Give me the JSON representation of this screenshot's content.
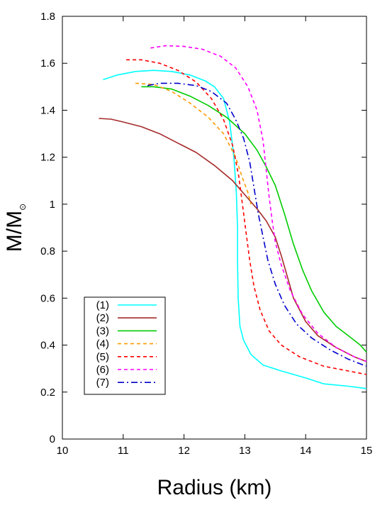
{
  "chart_data": {
    "type": "line",
    "title": "",
    "xlabel": "Radius (km)",
    "ylabel_main": "M/M",
    "ylabel_sub": "⊙",
    "xlim": [
      10,
      15
    ],
    "ylim": [
      0,
      1.8
    ],
    "xticks": [
      10,
      11,
      12,
      13,
      14,
      15
    ],
    "yticks": [
      0,
      0.2,
      0.4,
      0.6,
      0.8,
      1,
      1.2,
      1.4,
      1.6,
      1.8
    ],
    "xtick_labels": [
      "10",
      "11",
      "12",
      "13",
      "14",
      "15"
    ],
    "ytick_labels": [
      "0",
      "0.2",
      "0.4",
      "0.6",
      "0.8",
      "1",
      "1.2",
      "1.4",
      "1.6",
      "1.8"
    ],
    "grid": false,
    "legend_position": "bottom-left",
    "series": [
      {
        "name": "(1)",
        "color": "#00ffff",
        "dash": "solid",
        "points": [
          [
            10.67,
            1.53
          ],
          [
            10.9,
            1.55
          ],
          [
            11.2,
            1.565
          ],
          [
            11.5,
            1.57
          ],
          [
            11.8,
            1.565
          ],
          [
            12.1,
            1.55
          ],
          [
            12.35,
            1.525
          ],
          [
            12.5,
            1.5
          ],
          [
            12.65,
            1.45
          ],
          [
            12.75,
            1.35
          ],
          [
            12.82,
            1.2
          ],
          [
            12.86,
            1.05
          ],
          [
            12.88,
            0.9
          ],
          [
            12.88,
            0.75
          ],
          [
            12.89,
            0.6
          ],
          [
            12.92,
            0.48
          ],
          [
            12.98,
            0.42
          ],
          [
            13.1,
            0.36
          ],
          [
            13.3,
            0.315
          ],
          [
            13.6,
            0.29
          ],
          [
            14.0,
            0.26
          ],
          [
            14.3,
            0.235
          ],
          [
            14.7,
            0.225
          ],
          [
            15.0,
            0.215
          ]
        ]
      },
      {
        "name": "(2)",
        "color": "#a52a2a",
        "dash": "solid",
        "points": [
          [
            10.6,
            1.365
          ],
          [
            10.8,
            1.362
          ],
          [
            11.0,
            1.35
          ],
          [
            11.3,
            1.33
          ],
          [
            11.6,
            1.3
          ],
          [
            11.9,
            1.26
          ],
          [
            12.2,
            1.22
          ],
          [
            12.5,
            1.165
          ],
          [
            12.8,
            1.1
          ],
          [
            13.0,
            1.04
          ],
          [
            13.2,
            0.98
          ],
          [
            13.35,
            0.93
          ],
          [
            13.5,
            0.86
          ],
          [
            13.6,
            0.78
          ],
          [
            13.7,
            0.69
          ],
          [
            13.8,
            0.6
          ],
          [
            14.0,
            0.5
          ],
          [
            14.2,
            0.44
          ],
          [
            14.5,
            0.39
          ],
          [
            14.8,
            0.35
          ],
          [
            15.0,
            0.33
          ]
        ]
      },
      {
        "name": "(3)",
        "color": "#00cc00",
        "dash": "solid",
        "points": [
          [
            11.3,
            1.5
          ],
          [
            11.5,
            1.5
          ],
          [
            11.8,
            1.49
          ],
          [
            12.1,
            1.46
          ],
          [
            12.4,
            1.42
          ],
          [
            12.7,
            1.37
          ],
          [
            13.0,
            1.3
          ],
          [
            13.2,
            1.23
          ],
          [
            13.35,
            1.16
          ],
          [
            13.5,
            1.08
          ],
          [
            13.65,
            0.96
          ],
          [
            13.8,
            0.83
          ],
          [
            13.95,
            0.72
          ],
          [
            14.1,
            0.63
          ],
          [
            14.3,
            0.54
          ],
          [
            14.5,
            0.48
          ],
          [
            14.7,
            0.44
          ],
          [
            14.9,
            0.4
          ],
          [
            15.0,
            0.37
          ]
        ]
      },
      {
        "name": "(4)",
        "color": "#ff9900",
        "dash": "dash",
        "points": [
          [
            11.2,
            1.515
          ],
          [
            11.5,
            1.51
          ],
          [
            11.8,
            1.48
          ],
          [
            12.1,
            1.43
          ],
          [
            12.4,
            1.37
          ],
          [
            12.65,
            1.3
          ],
          [
            12.85,
            1.2
          ],
          [
            12.95,
            1.12
          ],
          [
            13.05,
            1.05
          ],
          [
            13.1,
            1.0
          ]
        ]
      },
      {
        "name": "(5)",
        "color": "#ff0000",
        "dash": "dash",
        "points": [
          [
            11.05,
            1.615
          ],
          [
            11.3,
            1.615
          ],
          [
            11.6,
            1.6
          ],
          [
            11.9,
            1.57
          ],
          [
            12.2,
            1.52
          ],
          [
            12.45,
            1.45
          ],
          [
            12.65,
            1.36
          ],
          [
            12.8,
            1.25
          ],
          [
            12.9,
            1.12
          ],
          [
            12.96,
            1.0
          ],
          [
            13.02,
            0.88
          ],
          [
            13.08,
            0.76
          ],
          [
            13.15,
            0.65
          ],
          [
            13.25,
            0.55
          ],
          [
            13.4,
            0.46
          ],
          [
            13.6,
            0.4
          ],
          [
            13.9,
            0.35
          ],
          [
            14.3,
            0.31
          ],
          [
            14.7,
            0.29
          ],
          [
            15.0,
            0.275
          ]
        ]
      },
      {
        "name": "(6)",
        "color": "#ff00ff",
        "dash": "dash",
        "points": [
          [
            11.45,
            1.665
          ],
          [
            11.7,
            1.675
          ],
          [
            12.0,
            1.672
          ],
          [
            12.3,
            1.66
          ],
          [
            12.6,
            1.63
          ],
          [
            12.85,
            1.58
          ],
          [
            13.05,
            1.5
          ],
          [
            13.2,
            1.4
          ],
          [
            13.3,
            1.27
          ],
          [
            13.35,
            1.15
          ],
          [
            13.4,
            1.03
          ],
          [
            13.45,
            0.93
          ],
          [
            13.5,
            0.84
          ],
          [
            13.6,
            0.74
          ],
          [
            13.75,
            0.63
          ],
          [
            13.95,
            0.53
          ],
          [
            14.2,
            0.45
          ],
          [
            14.5,
            0.39
          ],
          [
            14.8,
            0.35
          ],
          [
            15.0,
            0.33
          ]
        ]
      },
      {
        "name": "(7)",
        "color": "#0000cc",
        "dash": "dashdot",
        "points": [
          [
            11.4,
            1.505
          ],
          [
            11.6,
            1.515
          ],
          [
            11.9,
            1.515
          ],
          [
            12.2,
            1.505
          ],
          [
            12.45,
            1.48
          ],
          [
            12.7,
            1.43
          ],
          [
            12.85,
            1.36
          ],
          [
            12.98,
            1.28
          ],
          [
            13.08,
            1.18
          ],
          [
            13.15,
            1.07
          ],
          [
            13.22,
            0.96
          ],
          [
            13.3,
            0.86
          ],
          [
            13.38,
            0.76
          ],
          [
            13.5,
            0.66
          ],
          [
            13.65,
            0.57
          ],
          [
            13.85,
            0.49
          ],
          [
            14.1,
            0.43
          ],
          [
            14.4,
            0.38
          ],
          [
            14.7,
            0.34
          ],
          [
            15.0,
            0.31
          ]
        ]
      }
    ]
  }
}
